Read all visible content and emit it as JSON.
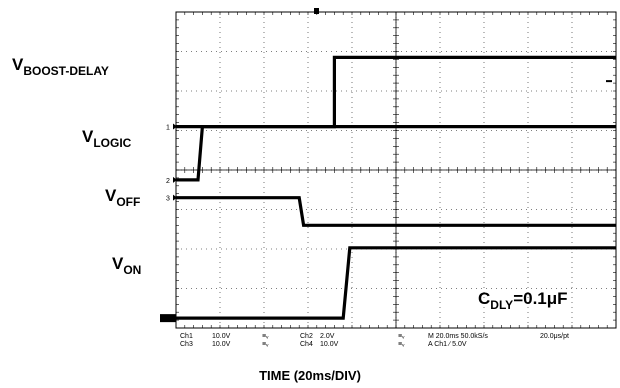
{
  "chart_data": {
    "type": "line",
    "title": "",
    "xlabel": "TIME (20ms/DIV)",
    "ylabel": "",
    "x_range_ms": [
      0,
      200
    ],
    "x_divisions": 10,
    "y_divisions": 8,
    "grid": true,
    "series": [
      {
        "name_main": "V",
        "name_sub": "BOOST-DELAY",
        "marker": "1",
        "low_div": 5.1,
        "high_div": 6.85,
        "points_ms": [
          [
            0,
            "low"
          ],
          [
            72,
            "low"
          ],
          [
            72,
            "high"
          ],
          [
            200,
            "high"
          ]
        ]
      },
      {
        "name_main": "V",
        "name_sub": "LOGIC",
        "marker": "2",
        "low_div": 3.75,
        "high_div": 5.1,
        "points_ms": [
          [
            0,
            "low"
          ],
          [
            10,
            "low"
          ],
          [
            12,
            "high"
          ],
          [
            200,
            "high"
          ]
        ]
      },
      {
        "name_main": "V",
        "name_sub": "OFF",
        "marker": "3",
        "low_div": 2.6,
        "high_div": 3.3,
        "points_ms": [
          [
            0,
            "high"
          ],
          [
            56,
            "high"
          ],
          [
            58,
            "low"
          ],
          [
            200,
            "low"
          ]
        ]
      },
      {
        "name_main": "V",
        "name_sub": "ON",
        "marker": "",
        "low_div": 0.25,
        "high_div": 2.03,
        "points_ms": [
          [
            0,
            "low"
          ],
          [
            76,
            "low"
          ],
          [
            79,
            "high"
          ],
          [
            200,
            "high"
          ]
        ]
      }
    ],
    "annotation": {
      "main": "C",
      "sub": "DLY",
      "rest": "=0.1μF"
    }
  },
  "scope_readout": {
    "row1": [
      "Ch1",
      "10.0V",
      "≡ᵥ",
      "Ch2",
      "2.0V",
      "≡ᵥ",
      "M 20.0ms 50.0kS/s",
      "20.0μs/pt"
    ],
    "row2": [
      "Ch3",
      "10.0V",
      "≡ᵥ",
      "Ch4",
      "10.0V",
      "≡ᵥ",
      "A  Ch1  ∕  5.0V"
    ]
  }
}
